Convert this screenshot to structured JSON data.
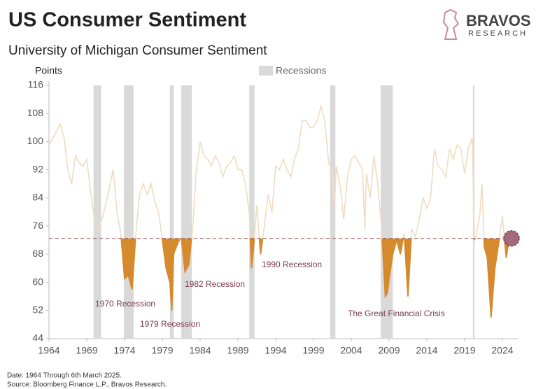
{
  "brand": {
    "name": "BRAVOS",
    "tagline": "RESEARCH"
  },
  "chart_data": {
    "type": "line",
    "title": "US Consumer Sentiment",
    "subtitle": "University of Michigan Consumer Sentiment",
    "y_label": "Points",
    "legend": {
      "recessions": "Recessions"
    },
    "recession_color": "#d9d9d9",
    "recessions": [
      [
        1969.9,
        1970.9
      ],
      [
        1973.9,
        1975.2
      ],
      [
        1980.0,
        1980.5
      ],
      [
        1981.5,
        1982.9
      ],
      [
        1990.5,
        1991.2
      ],
      [
        2001.2,
        2001.9
      ],
      [
        2007.9,
        2009.5
      ],
      [
        2020.1,
        2020.3
      ]
    ],
    "threshold": 72.5,
    "threshold_color": "#8b4a5a",
    "below_color": "#d68a2e",
    "xlim": [
      1964,
      2026.04
    ],
    "xticks": [
      1964,
      1969,
      1974,
      1979,
      1984,
      1989,
      1994,
      1999,
      2004,
      2009,
      2014,
      2019,
      2024
    ],
    "ylim": [
      44,
      116
    ],
    "yticks": [
      44,
      52,
      60,
      68,
      76,
      84,
      92,
      100,
      108,
      116
    ],
    "x": [
      1964,
      1964.5,
      1965,
      1965.5,
      1966,
      1966.5,
      1967,
      1967.5,
      1968,
      1968.5,
      1969,
      1969.5,
      1970,
      1970.5,
      1971,
      1971.5,
      1972,
      1972.5,
      1973,
      1973.5,
      1974,
      1974.5,
      1975,
      1975.5,
      1976,
      1976.5,
      1977,
      1977.5,
      1978,
      1978.5,
      1979,
      1979.5,
      1980,
      1980.25,
      1980.5,
      1981,
      1981.5,
      1982,
      1982.5,
      1983,
      1983.5,
      1984,
      1984.5,
      1985,
      1985.5,
      1986,
      1986.5,
      1987,
      1987.5,
      1988,
      1988.5,
      1989,
      1989.5,
      1990,
      1990.5,
      1990.8,
      1991,
      1991.5,
      1992,
      1992.5,
      1993,
      1993.5,
      1994,
      1994.5,
      1995,
      1995.5,
      1996,
      1996.5,
      1997,
      1997.5,
      1998,
      1998.5,
      1999,
      1999.5,
      2000,
      2000.5,
      2001,
      2001.5,
      2001.8,
      2002,
      2002.5,
      2003,
      2003.5,
      2004,
      2004.5,
      2005,
      2005.5,
      2005.8,
      2006,
      2006.5,
      2007,
      2007.5,
      2008,
      2008.5,
      2008.8,
      2009,
      2009.5,
      2010,
      2010.5,
      2011,
      2011.5,
      2012,
      2012.5,
      2013,
      2013.5,
      2014,
      2014.5,
      2015,
      2015.5,
      2016,
      2016.5,
      2017,
      2017.5,
      2018,
      2018.5,
      2019,
      2019.5,
      2020,
      2020.3,
      2020.5,
      2021,
      2021.3,
      2021.6,
      2022,
      2022.5,
      2023,
      2023.5,
      2024,
      2024.5,
      2024.8,
      2025,
      2025.2
    ],
    "series": [
      {
        "name": "Consumer Sentiment",
        "color": "#f0dcc0",
        "values": [
          99,
          101,
          103,
          105,
          101,
          92,
          88,
          96,
          94,
          93,
          95,
          86,
          78,
          75,
          78,
          82,
          87,
          92,
          80,
          74,
          61,
          62,
          58,
          74,
          85,
          88,
          85,
          88,
          83,
          80,
          72,
          64,
          60,
          52,
          68,
          71,
          73,
          63,
          65,
          75,
          92,
          100,
          96,
          95,
          93,
          96,
          94,
          90,
          93,
          94,
          96,
          92,
          92,
          88,
          80,
          64,
          68,
          82,
          68,
          76,
          85,
          80,
          93,
          92,
          95,
          92,
          90,
          95,
          98,
          106,
          106,
          104,
          104,
          106,
          110,
          106,
          94,
          92,
          82,
          93,
          88,
          78,
          90,
          95,
          96,
          94,
          92,
          75,
          91,
          84,
          96,
          88,
          76,
          56,
          57,
          61,
          68,
          72,
          68,
          74,
          56,
          75,
          73,
          78,
          84,
          81,
          84,
          98,
          93,
          92,
          90,
          98,
          95,
          99,
          98,
          91,
          98,
          101,
          72,
          73,
          79,
          88,
          70,
          67,
          50,
          64,
          71,
          79,
          67,
          71,
          73,
          72.5
        ]
      }
    ],
    "annotations": [
      "1970 Recession",
      "1979 Recession",
      "1982 Recession",
      "1990 Recession",
      "The Great Financial Crisis"
    ],
    "footnotes": [
      "Date: 1964 Through 6th March 2025.",
      "Source: Bloomberg Finance L.P., Bravos Research."
    ]
  }
}
